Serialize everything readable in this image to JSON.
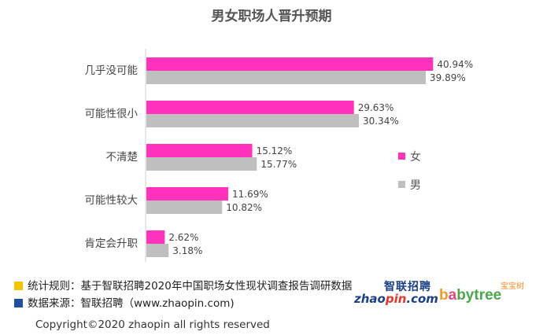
{
  "chart_data": {
    "type": "bar",
    "orientation": "horizontal",
    "title": "男女职场人晋升预期",
    "categories": [
      "几乎没可能",
      "可能性很小",
      "不清楚",
      "可能性较大",
      "肯定会升职"
    ],
    "series": [
      {
        "name": "女",
        "color": "#ff33bb",
        "values": [
          40.94,
          29.63,
          15.12,
          11.69,
          2.62
        ]
      },
      {
        "name": "男",
        "color": "#bfbfbf",
        "values": [
          39.89,
          30.34,
          15.77,
          10.82,
          3.18
        ]
      }
    ],
    "value_suffix": "%",
    "xlim": [
      0,
      45
    ],
    "grid": false,
    "legend_position": "right"
  },
  "notes": [
    {
      "label": "统计规则：",
      "text": "基于智联招聘2020年中国职场女性现状调查报告调研数据",
      "color": "#f5c400"
    },
    {
      "label": "数据来源：",
      "text": "智联招聘（www.zhaopin.com)",
      "color": "#1f4fa0"
    }
  ],
  "logos": {
    "zhaopin_top": "智联招聘",
    "zhaopin_left": "zhao",
    "zhaopin_pin": "pin",
    "zhaopin_right": ".com",
    "babytree_top": "宝宝树",
    "babytree_b1": "b",
    "babytree_b2": "a",
    "babytree_rest": "bytree"
  },
  "copyright": "Copyright©2020 zhaopin all rights reserved"
}
